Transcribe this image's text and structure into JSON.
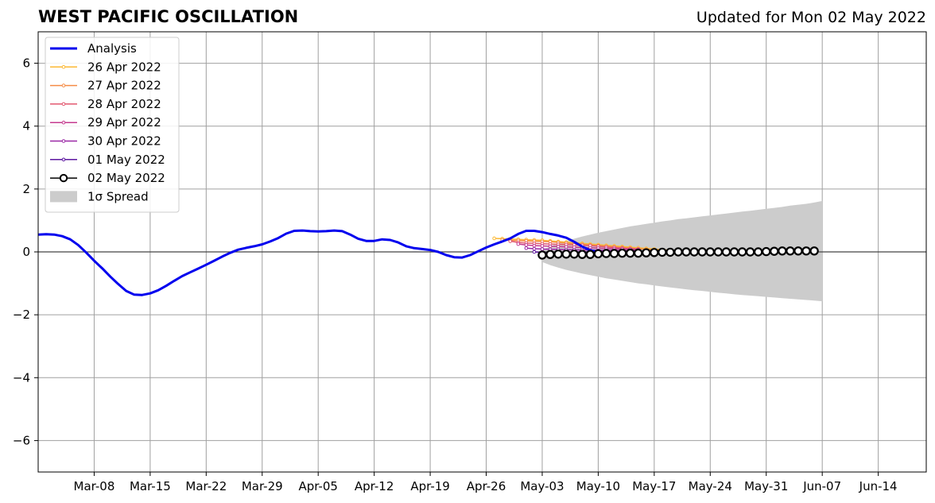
{
  "chart_data": {
    "type": "line",
    "title": "WEST PACIFIC OSCILLATION",
    "subtitle": "Updated for Mon 02 May 2022",
    "xlabel": "",
    "ylabel": "",
    "ylim": [
      -7,
      7
    ],
    "xlim": [
      "2022-03-01",
      "2022-06-20"
    ],
    "yticks": [
      -6,
      -4,
      -2,
      0,
      2,
      4,
      6
    ],
    "ytick_labels": [
      "−6",
      "−4",
      "−2",
      "0",
      "2",
      "4",
      "6"
    ],
    "xtick_dates": [
      "2022-03-08",
      "2022-03-15",
      "2022-03-22",
      "2022-03-29",
      "2022-04-05",
      "2022-04-12",
      "2022-04-19",
      "2022-04-26",
      "2022-05-03",
      "2022-05-10",
      "2022-05-17",
      "2022-05-24",
      "2022-05-31",
      "2022-06-07",
      "2022-06-14"
    ],
    "xtick_labels": [
      "Mar-08",
      "Mar-15",
      "Mar-22",
      "Mar-29",
      "Apr-05",
      "Apr-12",
      "Apr-19",
      "Apr-26",
      "May-03",
      "May-10",
      "May-17",
      "May-24",
      "May-31",
      "Jun-07",
      "Jun-14"
    ],
    "grid": true,
    "legend_position": "top-left",
    "colors": {
      "analysis": "#0000ee",
      "apr26": "#fcb934",
      "apr27": "#f58c46",
      "apr28": "#e2586f",
      "apr29": "#c43a8f",
      "apr30": "#9a28a6",
      "may01": "#5c17a0",
      "may02": "#000000",
      "spread": "#cccccc"
    },
    "analysis": {
      "name": "Analysis",
      "start": "2022-03-01",
      "values": [
        0.55,
        0.56,
        0.55,
        0.5,
        0.4,
        0.22,
        -0.02,
        -0.28,
        -0.52,
        -0.78,
        -1.02,
        -1.24,
        -1.36,
        -1.37,
        -1.32,
        -1.22,
        -1.08,
        -0.92,
        -0.77,
        -0.65,
        -0.53,
        -0.41,
        -0.28,
        -0.15,
        -0.03,
        0.07,
        0.13,
        0.18,
        0.24,
        0.33,
        0.44,
        0.58,
        0.67,
        0.68,
        0.66,
        0.65,
        0.66,
        0.68,
        0.66,
        0.55,
        0.42,
        0.35,
        0.35,
        0.4,
        0.38,
        0.3,
        0.18,
        0.12,
        0.09,
        0.06,
        0.0,
        -0.1,
        -0.17,
        -0.18,
        -0.1,
        0.02,
        0.14,
        0.24,
        0.33,
        0.43,
        0.57,
        0.67,
        0.67,
        0.63,
        0.57,
        0.52,
        0.45,
        0.32,
        0.17,
        0.05,
        0.0,
        -0.05,
        -0.08
      ]
    },
    "forecasts": [
      {
        "name": "26 Apr 2022",
        "start": "2022-04-27",
        "values": [
          0.43,
          0.42,
          0.41,
          0.4,
          0.39,
          0.38,
          0.37,
          0.35,
          0.33,
          0.31,
          0.29,
          0.27,
          0.25,
          0.23,
          0.21,
          0.19,
          0.17,
          0.15,
          0.13,
          0.11,
          0.09,
          0.07,
          0.05,
          0.03,
          0.01,
          0.0,
          -0.01,
          -0.02,
          -0.03,
          -0.03,
          -0.04,
          -0.04,
          -0.04,
          -0.04,
          -0.05
        ]
      },
      {
        "name": "27 Apr 2022",
        "start": "2022-04-28",
        "values": [
          0.38,
          0.37,
          0.36,
          0.35,
          0.34,
          0.33,
          0.32,
          0.3,
          0.28,
          0.26,
          0.24,
          0.22,
          0.2,
          0.18,
          0.16,
          0.14,
          0.12,
          0.1,
          0.08,
          0.06,
          0.04,
          0.03,
          0.02,
          0.01,
          0.0,
          -0.01,
          -0.02,
          -0.03,
          -0.03,
          -0.04,
          -0.04,
          -0.05,
          -0.05,
          -0.05
        ]
      },
      {
        "name": "28 Apr 2022",
        "start": "2022-04-29",
        "values": [
          0.34,
          0.3,
          0.28,
          0.27,
          0.26,
          0.25,
          0.24,
          0.23,
          0.22,
          0.21,
          0.2,
          0.18,
          0.16,
          0.14,
          0.12,
          0.1,
          0.09
        ]
      },
      {
        "name": "29 Apr 2022",
        "start": "2022-04-30",
        "values": [
          0.25,
          0.22,
          0.2,
          0.19,
          0.18,
          0.17,
          0.16,
          0.15,
          0.14,
          0.13,
          0.12,
          0.11,
          0.1,
          0.09,
          0.08,
          0.07
        ]
      },
      {
        "name": "30 Apr 2022",
        "start": "2022-05-01",
        "values": [
          0.12,
          0.1,
          0.09,
          0.08,
          0.08,
          0.07,
          0.07,
          0.06,
          0.06,
          0.05,
          0.05,
          0.05,
          0.04,
          0.04,
          0.04
        ]
      },
      {
        "name": "01 May 2022",
        "start": "2022-05-02",
        "values": [
          0.0,
          -0.02,
          -0.02,
          -0.01,
          -0.01,
          0.0,
          0.0,
          0.0,
          0.0,
          0.0,
          0.01,
          0.01,
          0.01,
          0.01
        ]
      },
      {
        "name": "02 May 2022",
        "start": "2022-05-03",
        "values": [
          -0.1,
          -0.08,
          -0.07,
          -0.07,
          -0.07,
          -0.08,
          -0.08,
          -0.06,
          -0.05,
          -0.05,
          -0.04,
          -0.04,
          -0.04,
          -0.03,
          -0.02,
          -0.01,
          -0.01,
          0.0,
          0.0,
          0.0,
          0.0,
          0.0,
          0.0,
          0.0,
          0.0,
          0.0,
          0.0,
          0.0,
          0.01,
          0.02,
          0.03,
          0.03,
          0.03,
          0.03,
          0.03
        ]
      }
    ],
    "spread": {
      "name": "1σ Spread",
      "start": "2022-05-03",
      "upper": [
        0.06,
        0.18,
        0.27,
        0.35,
        0.42,
        0.49,
        0.55,
        0.61,
        0.66,
        0.71,
        0.76,
        0.81,
        0.85,
        0.89,
        0.93,
        0.97,
        1.0,
        1.04,
        1.07,
        1.1,
        1.13,
        1.16,
        1.19,
        1.22,
        1.25,
        1.28,
        1.31,
        1.34,
        1.37,
        1.4,
        1.43,
        1.47,
        1.5,
        1.53,
        1.57,
        1.62
      ],
      "lower": [
        -0.32,
        -0.42,
        -0.5,
        -0.57,
        -0.63,
        -0.69,
        -0.74,
        -0.79,
        -0.84,
        -0.88,
        -0.92,
        -0.96,
        -1.0,
        -1.03,
        -1.07,
        -1.1,
        -1.13,
        -1.16,
        -1.19,
        -1.22,
        -1.24,
        -1.27,
        -1.3,
        -1.32,
        -1.35,
        -1.37,
        -1.39,
        -1.41,
        -1.43,
        -1.45,
        -1.47,
        -1.49,
        -1.51,
        -1.53,
        -1.55,
        -1.57
      ]
    }
  }
}
